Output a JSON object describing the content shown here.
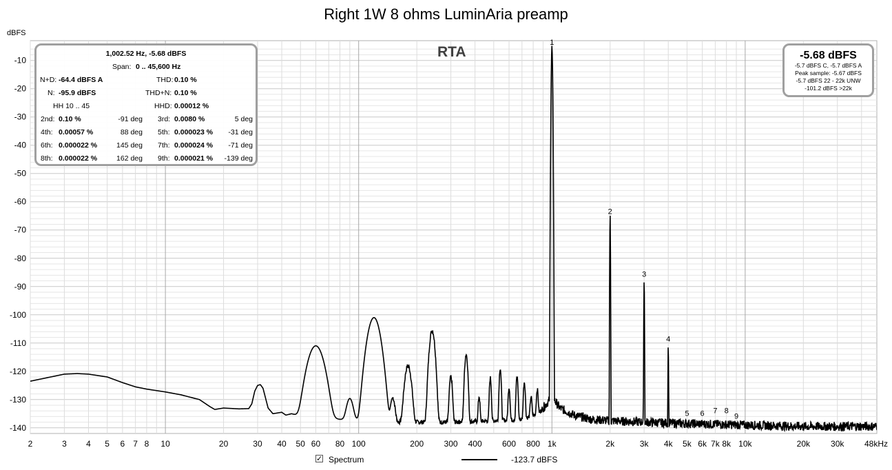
{
  "chart_data": {
    "type": "line",
    "title": "Right 1W 8 ohms LuminAria preamp",
    "ylabel": "dBFS",
    "xlabel": "",
    "x_scale": "log",
    "xlim": [
      2,
      48000
    ],
    "ylim": [
      -142,
      -3
    ],
    "grid": true,
    "yticks": [
      -10,
      -20,
      -30,
      -40,
      -50,
      -60,
      -70,
      -80,
      -90,
      -100,
      -110,
      -120,
      -130,
      -140
    ],
    "ytick_labels": [
      "-10",
      "-20",
      "-30",
      "-40",
      "-50",
      "-60",
      "-70",
      "-80",
      "-90",
      "-100",
      "-110",
      "-120",
      "-130",
      "-140"
    ],
    "xticks": [
      2,
      3,
      4,
      5,
      6,
      7,
      8,
      10,
      20,
      30,
      40,
      50,
      60,
      80,
      100,
      200,
      300,
      400,
      600,
      800,
      1000,
      2000,
      3000,
      4000,
      5000,
      6000,
      7000,
      8000,
      10000,
      20000,
      30000,
      48000
    ],
    "xtick_labels": [
      "2",
      "3",
      "4",
      "5",
      "6",
      "7",
      "8",
      "10",
      "20",
      "30",
      "40",
      "50",
      "60",
      "80",
      "100",
      "200",
      "300",
      "400",
      "600",
      "800",
      "1k",
      "2k",
      "3k",
      "4k",
      "5k",
      "6k",
      "7k",
      "8k",
      "10k",
      "20k",
      "30k",
      "48kHz"
    ],
    "series": [
      {
        "name": "Spectrum",
        "color": "#000000",
        "floor": [
          [
            2,
            -123.5
          ],
          [
            3,
            -121
          ],
          [
            3.5,
            -120.8
          ],
          [
            4,
            -121
          ],
          [
            5,
            -122
          ],
          [
            6,
            -124
          ],
          [
            7,
            -125.5
          ],
          [
            8,
            -126.3
          ],
          [
            10,
            -127.3
          ],
          [
            12,
            -128.3
          ],
          [
            15,
            -130
          ],
          [
            17,
            -132.5
          ],
          [
            18,
            -133.5
          ],
          [
            20,
            -133
          ],
          [
            24,
            -133.3
          ],
          [
            27,
            -133.2
          ],
          [
            28,
            -131.5
          ],
          [
            29,
            -127
          ],
          [
            30,
            -125
          ],
          [
            31,
            -124.7
          ],
          [
            32,
            -126
          ],
          [
            34,
            -133
          ],
          [
            36,
            -135
          ],
          [
            40,
            -134.5
          ],
          [
            42,
            -135.5
          ],
          [
            45,
            -135
          ],
          [
            50,
            -136
          ],
          [
            55,
            -137
          ],
          [
            70,
            -136.5
          ],
          [
            80,
            -137
          ],
          [
            90,
            -137
          ],
          [
            110,
            -137.5
          ],
          [
            150,
            -138
          ],
          [
            200,
            -138
          ],
          [
            300,
            -138
          ],
          [
            500,
            -137.5
          ],
          [
            700,
            -137
          ],
          [
            850,
            -135
          ],
          [
            950,
            -131
          ],
          [
            1000,
            -129
          ],
          [
            1100,
            -133
          ],
          [
            1300,
            -135.5
          ],
          [
            1600,
            -137
          ],
          [
            2000,
            -137.5
          ],
          [
            3000,
            -138
          ],
          [
            5000,
            -138.5
          ],
          [
            10000,
            -139
          ],
          [
            20000,
            -139.5
          ],
          [
            48000,
            -139.5
          ]
        ],
        "peaks": [
          {
            "f": 60,
            "db": -111,
            "w": 0.06
          },
          {
            "f": 90,
            "db": -130.5,
            "w": 0.03
          },
          {
            "f": 120,
            "db": -101,
            "w": 0.045
          },
          {
            "f": 150,
            "db": -130,
            "w": 0.02
          },
          {
            "f": 180,
            "db": -118,
            "w": 0.025
          },
          {
            "f": 240,
            "db": -105.5,
            "w": 0.02
          },
          {
            "f": 300,
            "db": -122,
            "w": 0.012
          },
          {
            "f": 360,
            "db": -114,
            "w": 0.012
          },
          {
            "f": 420,
            "db": -129.5,
            "w": 0.008
          },
          {
            "f": 480,
            "db": -122.5,
            "w": 0.008
          },
          {
            "f": 540,
            "db": -119,
            "w": 0.008
          },
          {
            "f": 600,
            "db": -126,
            "w": 0.008
          },
          {
            "f": 660,
            "db": -122,
            "w": 0.008
          },
          {
            "f": 720,
            "db": -124,
            "w": 0.008
          },
          {
            "f": 780,
            "db": -130,
            "w": 0.008
          },
          {
            "f": 840,
            "db": -127,
            "w": 0.008
          },
          {
            "f": 1000,
            "db": -5.7,
            "w": 0.004
          },
          {
            "f": 2000,
            "db": -65.5,
            "w": 0.002
          },
          {
            "f": 3000,
            "db": -87.7,
            "w": 0.002
          },
          {
            "f": 4000,
            "db": -110.7,
            "w": 0.002
          }
        ]
      }
    ],
    "harmonic_markers": [
      {
        "label": "1",
        "f": 1000,
        "db": -5.7
      },
      {
        "label": "2",
        "f": 2000,
        "db": -65.5
      },
      {
        "label": "3",
        "f": 3000,
        "db": -87.7
      },
      {
        "label": "4",
        "f": 4000,
        "db": -110.7
      },
      {
        "label": "5",
        "f": 5000,
        "db": -137
      },
      {
        "label": "6",
        "f": 6000,
        "db": -137
      },
      {
        "label": "7",
        "f": 7000,
        "db": -136
      },
      {
        "label": "8",
        "f": 8000,
        "db": -136
      },
      {
        "label": "9",
        "f": 9000,
        "db": -138
      }
    ],
    "legend": {
      "placement": "bottom-center",
      "label": "Spectrum",
      "value": "-123.7 dBFS",
      "checked": true
    }
  },
  "overlay": {
    "rta_label": "RTA",
    "stats": {
      "header": "1,002.52 Hz, -5.68 dBFS",
      "span_label": "Span:",
      "span_value": "0 .. 45,600 Hz",
      "nd_label": "N+D:",
      "nd_value": "-64.4 dBFS A",
      "thd_label": "THD:",
      "thd_value": "0.10 %",
      "n_label": "N:",
      "n_value": "-95.9 dBFS",
      "thdn_label": "THD+N:",
      "thdn_value": "0.10 %",
      "hh_label": "HH 10 .. 45",
      "hhd_label": "HHD:",
      "hhd_value": "0.00012 %",
      "rows": [
        {
          "l1": "2nd:",
          "v1": "0.10 %",
          "d1": "-91 deg",
          "l2": "3rd:",
          "v2": "0.0080 %",
          "d2": "5 deg"
        },
        {
          "l1": "4th:",
          "v1": "0.00057 %",
          "d1": "88 deg",
          "l2": "5th:",
          "v2": "0.000023 %",
          "d2": "-31 deg"
        },
        {
          "l1": "6th:",
          "v1": "0.000022 %",
          "d1": "145 deg",
          "l2": "7th:",
          "v2": "0.000024 %",
          "d2": "-71 deg"
        },
        {
          "l1": "8th:",
          "v1": "0.000022 %",
          "d1": "162 deg",
          "l2": "9th:",
          "v2": "0.000021 %",
          "d2": "-139 deg"
        }
      ]
    },
    "level": {
      "big": "-5.68 dBFS",
      "line1": "-5.7 dBFS C, -5.7 dBFS A",
      "line2": "Peak sample: -5.67 dBFS",
      "line3": "-5.7 dBFS 22 - 22k UNW",
      "line4": "-101.2 dBFS >22k"
    }
  }
}
